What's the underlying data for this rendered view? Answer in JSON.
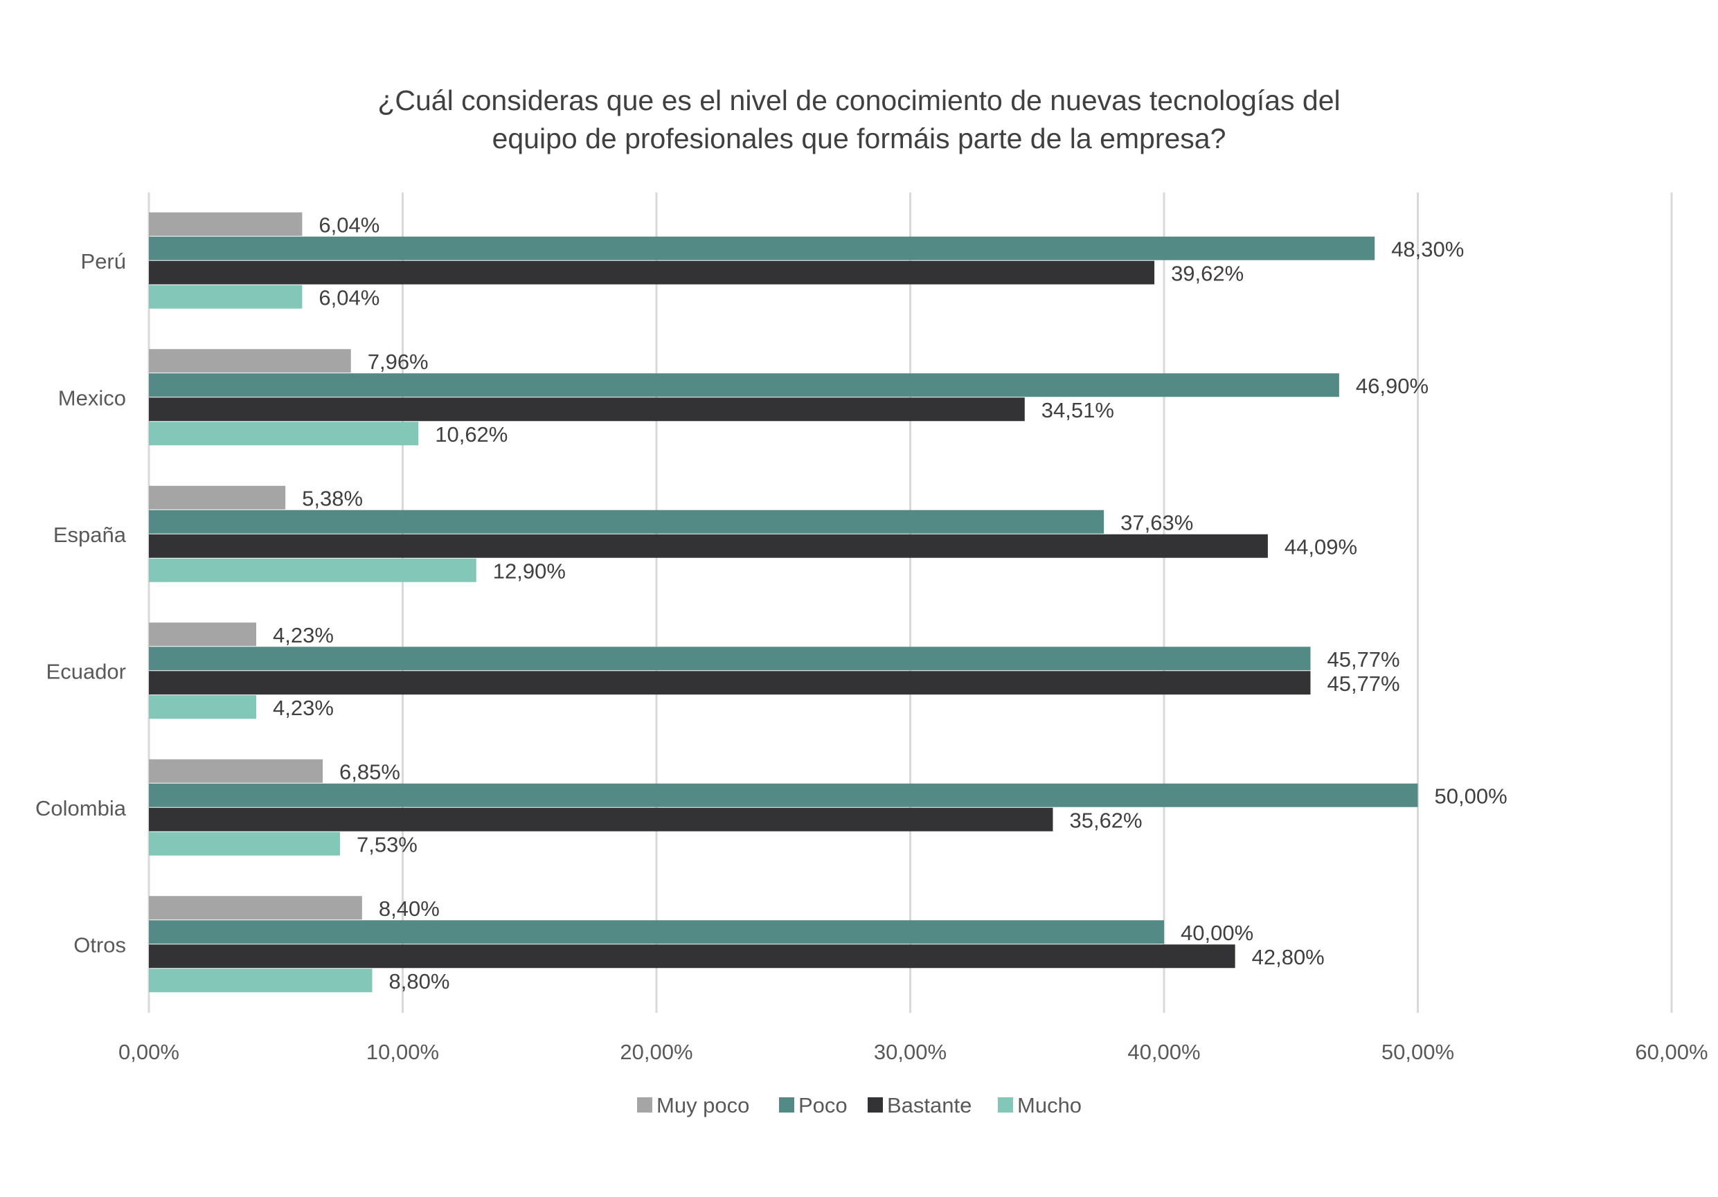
{
  "chart_data": {
    "type": "bar",
    "orientation": "horizontal",
    "title": [
      "¿Cuál consideras que es el nivel de conocimiento de nuevas tecnologías del",
      "equipo de profesionales que formáis parte de la empresa?"
    ],
    "categories": [
      "Perú",
      "Mexico",
      "España",
      "Ecuador",
      "Colombia",
      "Otros"
    ],
    "series": [
      {
        "name": "Muy poco",
        "color": "#a5a5a5",
        "values": [
          6.04,
          7.96,
          5.38,
          4.23,
          6.85,
          8.4
        ],
        "labels": [
          "6,04%",
          "7,96%",
          "5,38%",
          "4,23%",
          "6,85%",
          "8,40%"
        ]
      },
      {
        "name": "Poco",
        "color": "#538a85",
        "values": [
          48.3,
          46.9,
          37.63,
          45.77,
          50.0,
          40.0
        ],
        "labels": [
          "48,30%",
          "46,90%",
          "37,63%",
          "45,77%",
          "50,00%",
          "40,00%"
        ]
      },
      {
        "name": "Bastante",
        "color": "#333335",
        "values": [
          39.62,
          34.51,
          44.09,
          45.77,
          35.62,
          42.8
        ],
        "labels": [
          "39,62%",
          "34,51%",
          "44,09%",
          "45,77%",
          "35,62%",
          "42,80%"
        ]
      },
      {
        "name": "Mucho",
        "color": "#82c7b8",
        "values": [
          6.04,
          10.62,
          12.9,
          4.23,
          7.53,
          8.8
        ],
        "labels": [
          "6,04%",
          "10,62%",
          "12,90%",
          "4,23%",
          "7,53%",
          "8,80%"
        ]
      }
    ],
    "xlim": [
      0,
      60
    ],
    "xticks": [
      0,
      10,
      20,
      30,
      40,
      50,
      60
    ],
    "xtick_labels": [
      "0,00%",
      "10,00%",
      "20,00%",
      "30,00%",
      "40,00%",
      "50,00%",
      "60,00%"
    ],
    "grid": "vertical",
    "legend": "bottom"
  }
}
